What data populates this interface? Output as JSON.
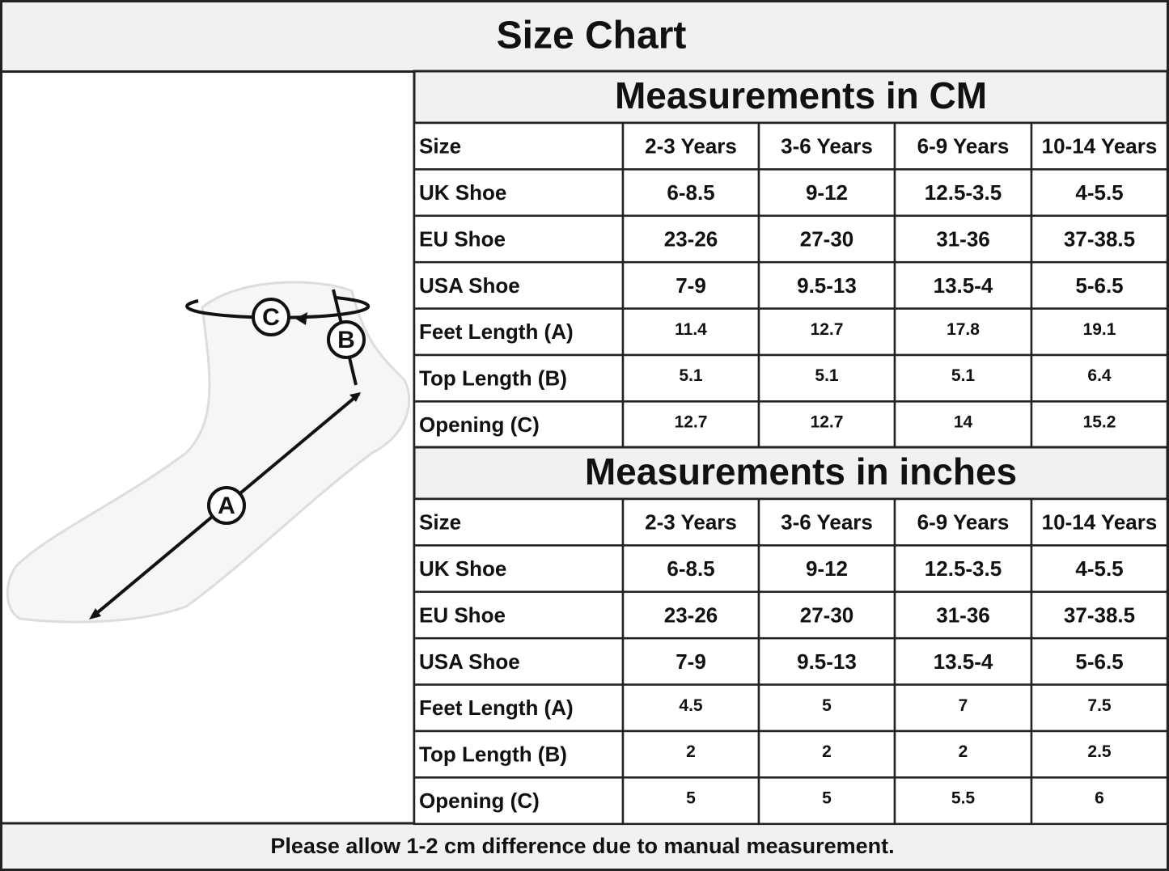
{
  "header": {
    "title": "Size Chart"
  },
  "diagram": {
    "labels": [
      "A",
      "B",
      "C"
    ]
  },
  "tables": [
    {
      "title": "Measurements in CM",
      "columns": [
        "Size",
        "2-3 Years",
        "3-6 Years",
        "6-9 Years",
        "10-14 Years"
      ],
      "rows": [
        [
          "UK Shoe",
          "6-8.5",
          "9-12",
          "12.5-3.5",
          "4-5.5"
        ],
        [
          "EU Shoe",
          "23-26",
          "27-30",
          "31-36",
          "37-38.5"
        ],
        [
          "USA Shoe",
          "7-9",
          "9.5-13",
          "13.5-4",
          "5-6.5"
        ],
        [
          "Feet Length (A)",
          "11.4",
          "12.7",
          "17.8",
          "19.1"
        ],
        [
          "Top Length (B)",
          "5.1",
          "5.1",
          "5.1",
          "6.4"
        ],
        [
          "Opening (C)",
          "12.7",
          "12.7",
          "14",
          "15.2"
        ]
      ]
    },
    {
      "title": "Measurements in inches",
      "columns": [
        "Size",
        "2-3 Years",
        "3-6 Years",
        "6-9 Years",
        "10-14 Years"
      ],
      "rows": [
        [
          "UK Shoe",
          "6-8.5",
          "9-12",
          "12.5-3.5",
          "4-5.5"
        ],
        [
          "EU Shoe",
          "23-26",
          "27-30",
          "31-36",
          "37-38.5"
        ],
        [
          "USA Shoe",
          "7-9",
          "9.5-13",
          "13.5-4",
          "5-6.5"
        ],
        [
          "Feet Length (A)",
          "4.5",
          "5",
          "7",
          "7.5"
        ],
        [
          "Top Length (B)",
          "2",
          "2",
          "2",
          "2.5"
        ],
        [
          "Opening (C)",
          "5",
          "5",
          "5.5",
          "6"
        ]
      ]
    }
  ],
  "footer": "Please allow 1-2 cm difference due to manual measurement."
}
